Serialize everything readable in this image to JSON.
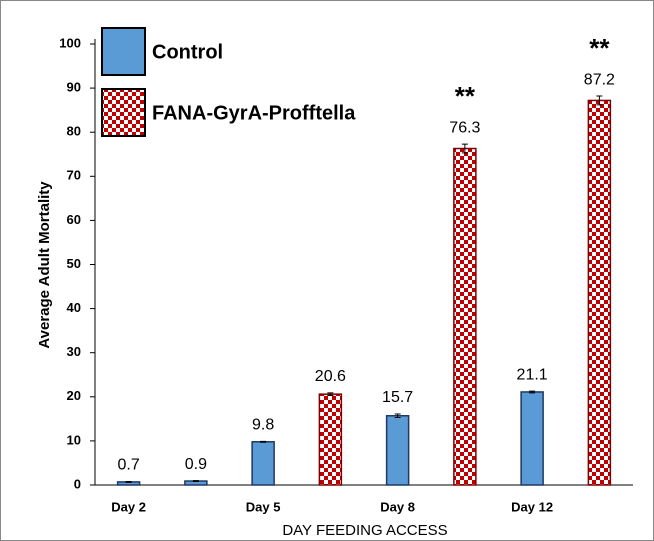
{
  "chart_data": {
    "type": "bar",
    "ylabel": "Average  Adult  Mortality",
    "xlabel": "DAY FEEDING ACCESS",
    "categories": [
      "Day 2",
      null,
      "Day 5",
      null,
      "Day 8",
      null,
      "Day 12",
      null
    ],
    "series": [
      {
        "name": "Control",
        "color": "#5b9bd5",
        "pattern": "solid",
        "values": [
          0.7,
          0.9,
          9.8,
          null,
          15.7,
          null,
          21.1,
          null
        ],
        "errors": [
          0.1,
          0.1,
          0.1,
          null,
          0.4,
          null,
          0.2,
          null
        ],
        "annotations": [
          null,
          null,
          null,
          null,
          null,
          null,
          null,
          null
        ]
      },
      {
        "name": "FANA-GyrA-Profftella",
        "color": "#c00000",
        "pattern": "checker",
        "values": [
          null,
          null,
          null,
          20.6,
          null,
          76.3,
          null,
          87.2
        ],
        "errors": [
          null,
          null,
          null,
          0.3,
          null,
          1.0,
          null,
          1.0
        ],
        "annotations": [
          null,
          null,
          null,
          null,
          null,
          "**",
          null,
          "**"
        ]
      }
    ],
    "ylim": [
      0,
      100
    ],
    "yticks": [
      0,
      10,
      20,
      30,
      40,
      50,
      60,
      70,
      80,
      90,
      100
    ],
    "grid": false,
    "legend": "top-left"
  }
}
